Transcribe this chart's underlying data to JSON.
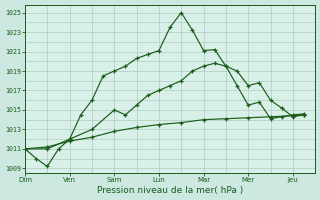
{
  "xlabel": "Pression niveau de la mer( hPa )",
  "background_color": "#cce8e0",
  "plot_bg_color": "#d8f0e8",
  "grid_color": "#b0ccc4",
  "line_color": "#1a5c1a",
  "x_labels": [
    "Dim",
    "Ven",
    "Sam",
    "Lun",
    "Mar",
    "Mer",
    "Jeu"
  ],
  "x_tick_pos": [
    0,
    2,
    4,
    6,
    8,
    10,
    12
  ],
  "ylim": [
    1008.5,
    1025.8
  ],
  "yticks": [
    1009,
    1011,
    1013,
    1015,
    1017,
    1019,
    1021,
    1023,
    1025
  ],
  "xlim": [
    0,
    13
  ],
  "line1_x": [
    0,
    0.5,
    1,
    1.5,
    2,
    2.5,
    3,
    3.5,
    4,
    4.5,
    5,
    5.5,
    6,
    6.5,
    7,
    7.5,
    8,
    8.5,
    9,
    9.5,
    10,
    10.5,
    11,
    11.5,
    12,
    12.5
  ],
  "line1_y": [
    1011,
    1010,
    1009.2,
    1011,
    1012,
    1014.5,
    1016,
    1018.5,
    1019,
    1019.5,
    1020.3,
    1020.7,
    1021.1,
    1023.5,
    1025,
    1023.2,
    1021.1,
    1021.2,
    1019.5,
    1017.5,
    1015.5,
    1015.8,
    1014.1,
    1014.3,
    1014.5,
    1014.6
  ],
  "line2_x": [
    0,
    1,
    2,
    3,
    4,
    4.5,
    5,
    5.5,
    6,
    6.5,
    7,
    7.5,
    8,
    8.5,
    9,
    9.5,
    10,
    10.5,
    11,
    11.5,
    12,
    12.5
  ],
  "line2_y": [
    1011,
    1011,
    1012,
    1013,
    1015,
    1014.5,
    1015.5,
    1016.5,
    1017,
    1017.5,
    1018,
    1019,
    1019.5,
    1019.8,
    1019.5,
    1019,
    1017.5,
    1017.8,
    1016,
    1015.2,
    1014.3,
    1014.5
  ],
  "line3_x": [
    0,
    1,
    2,
    3,
    4,
    5,
    6,
    7,
    8,
    9,
    10,
    11,
    12,
    12.5
  ],
  "line3_y": [
    1011,
    1011.2,
    1011.8,
    1012.2,
    1012.8,
    1013.2,
    1013.5,
    1013.7,
    1014.0,
    1014.1,
    1014.2,
    1014.3,
    1014.4,
    1014.5
  ]
}
